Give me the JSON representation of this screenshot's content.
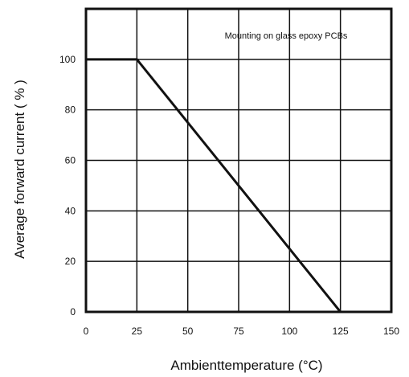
{
  "chart_data": {
    "type": "line",
    "title": "",
    "xlabel": "Ambienttemperature (°C)",
    "ylabel": "Average forward current ( % )",
    "xlim": [
      0,
      150
    ],
    "ylim": [
      0,
      120
    ],
    "xticks": [
      0,
      25,
      50,
      75,
      100,
      125,
      150
    ],
    "yticks": [
      0,
      20,
      40,
      60,
      80,
      100
    ],
    "grid": true,
    "annotation": "Mounting on glass epoxy PCBs",
    "series": [
      {
        "x": [
          0,
          25,
          125
        ],
        "y": [
          100,
          100,
          0
        ],
        "color": "#111111"
      }
    ]
  }
}
